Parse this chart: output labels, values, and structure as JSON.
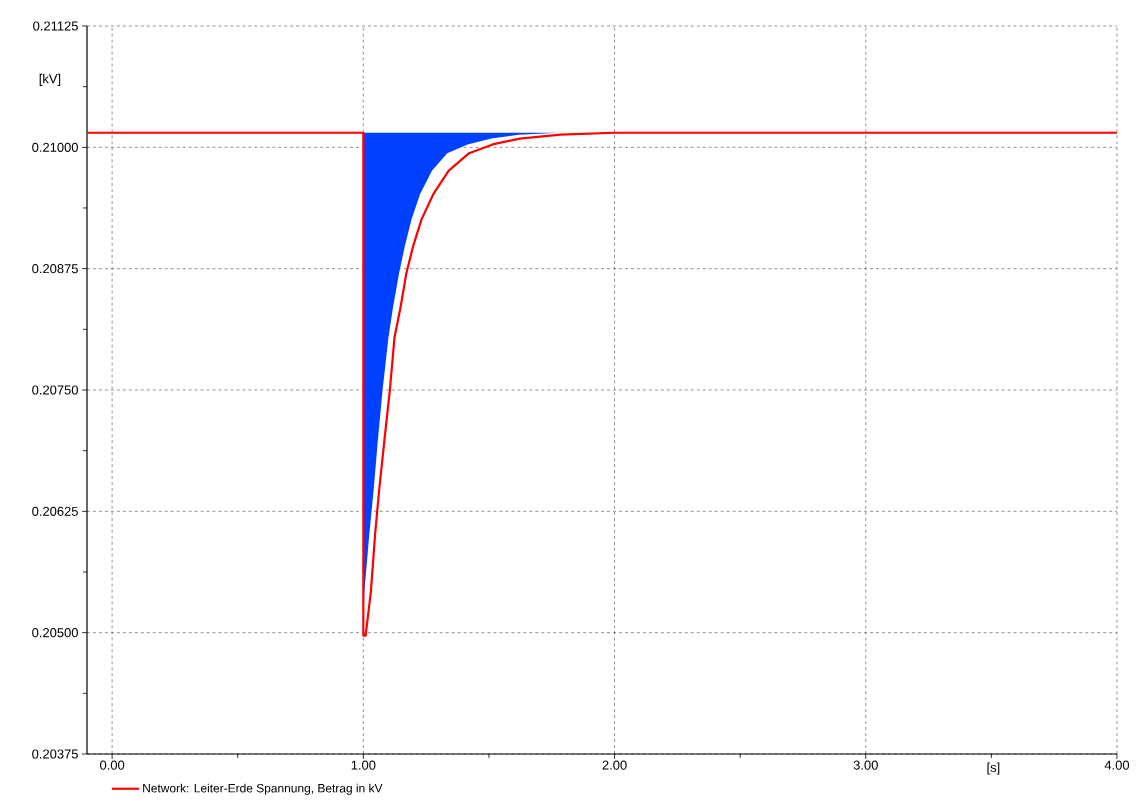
{
  "chart_data": {
    "type": "line",
    "xlabel": "[s]",
    "ylabel": "[kV]",
    "xlim": [
      -0.1,
      4.0
    ],
    "ylim": [
      0.20375,
      0.21125
    ],
    "xticks": [
      {
        "value": 0,
        "label": "0.00"
      },
      {
        "value": 1,
        "label": "1.00"
      },
      {
        "value": 2,
        "label": "2.00"
      },
      {
        "value": 3,
        "label": "3.00"
      },
      {
        "value": 4,
        "label": "4.00"
      }
    ],
    "yticks": [
      0.20375,
      {
        "value": 0.205,
        "label": "0.20500"
      },
      0.20625,
      {
        "value": 0.2075,
        "label": "0.20750"
      },
      0.20875,
      {
        "value": 0.21,
        "label": "0.21000"
      },
      0.21125
    ],
    "grid": true,
    "legend": "bottom left",
    "series": [
      {
        "name": "Network: Leiter-Erde Spannung, Betrag in kV",
        "color": "#ff0000",
        "x": [
          -0.1,
          1.0,
          1.0,
          1.009,
          1.03,
          1.047,
          1.063,
          1.083,
          1.106,
          1.124,
          1.148,
          1.171,
          1.198,
          1.232,
          1.279,
          1.34,
          1.421,
          1.515,
          1.623,
          1.785,
          2.0,
          4.0
        ],
        "values": [
          0.21015,
          0.21015,
          0.20497,
          0.20497,
          0.20542,
          0.20602,
          0.20647,
          0.20696,
          0.20751,
          0.20804,
          0.20835,
          0.2087,
          0.20898,
          0.20926,
          0.20952,
          0.20976,
          0.20994,
          0.21003,
          0.21009,
          0.21013,
          0.21015,
          0.21015
        ]
      },
      {
        "type": "area",
        "color": "#0040ff",
        "x": [
          1.0,
          1.0,
          1.004,
          1.024,
          1.041,
          1.057,
          1.077,
          1.1,
          1.118,
          1.142,
          1.165,
          1.192,
          1.226,
          1.273,
          1.334,
          1.415,
          1.509,
          1.617,
          1.78
        ],
        "values": [
          0.21015,
          0.20497,
          0.20542,
          0.20602,
          0.20647,
          0.20696,
          0.20751,
          0.20804,
          0.20835,
          0.2087,
          0.20898,
          0.20926,
          0.20952,
          0.20976,
          0.20994,
          0.21003,
          0.21009,
          0.21013,
          0.21015
        ]
      }
    ]
  }
}
